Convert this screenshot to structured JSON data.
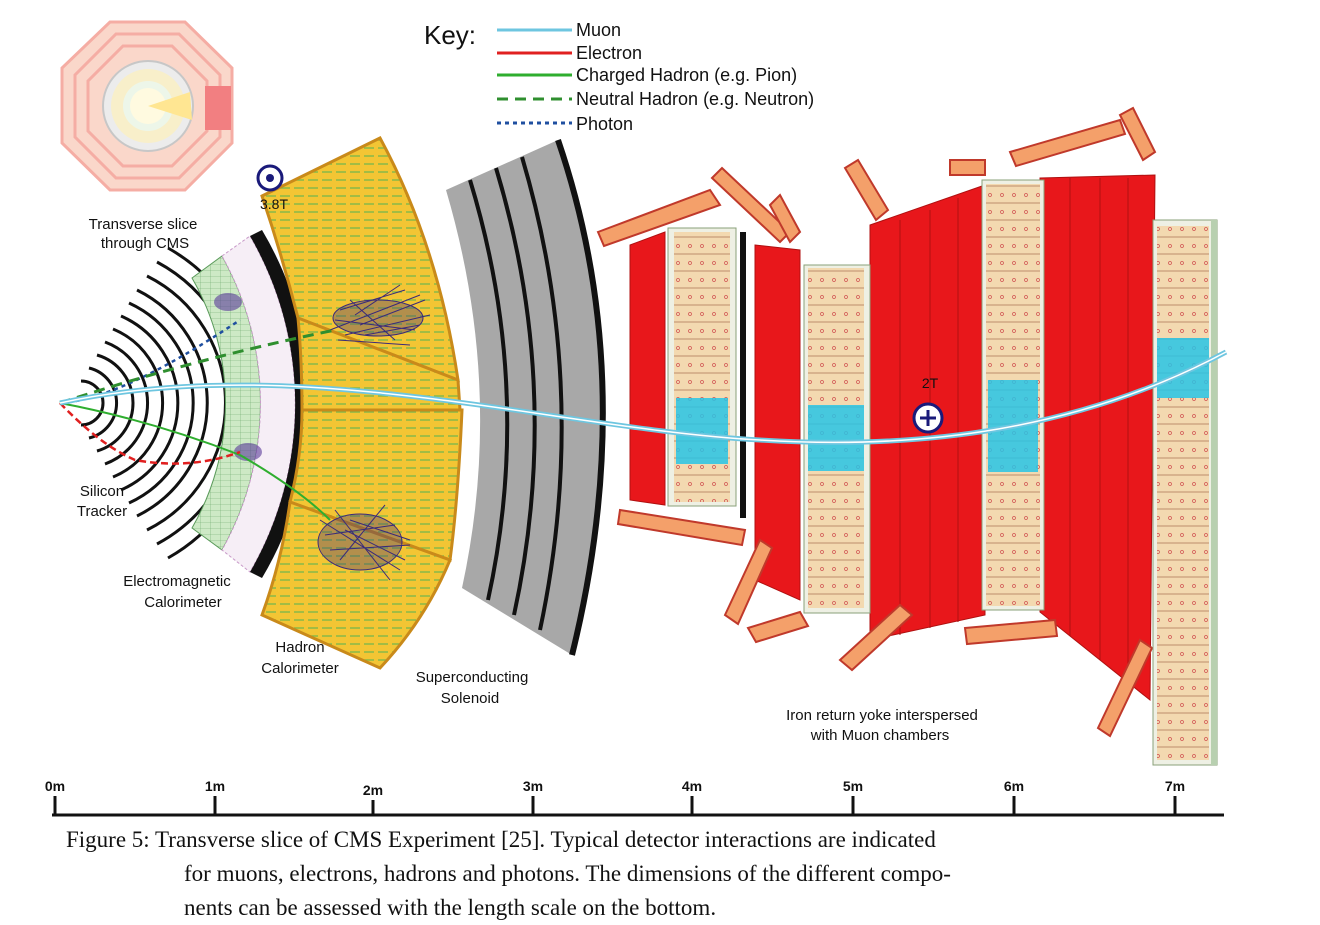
{
  "key": {
    "title": "Key:",
    "items": [
      {
        "label": "Muon",
        "color": "#6ec6e0",
        "style": "solid"
      },
      {
        "label": "Electron",
        "color": "#e02020",
        "style": "solid"
      },
      {
        "label": "Charged Hadron (e.g. Pion)",
        "color": "#2fae2f",
        "style": "solid"
      },
      {
        "label": "Neutral Hadron (e.g. Neutron)",
        "color": "#2f8f2f",
        "style": "dashed"
      },
      {
        "label": "Photon",
        "color": "#1f4fa0",
        "style": "dotted"
      }
    ]
  },
  "inset": {
    "label_line1": "Transverse slice",
    "label_line2": "through CMS"
  },
  "field_inner": {
    "value": "3.8T",
    "symbol": "dot-out-of-page"
  },
  "field_outer": {
    "value": "2T",
    "symbol": "cross-into-page"
  },
  "components": {
    "tracker": {
      "line1": "Silicon",
      "line2": "Tracker"
    },
    "ecal": {
      "line1": "Electromagnetic",
      "line2": "Calorimeter"
    },
    "hcal": {
      "line1": "Hadron",
      "line2": "Calorimeter"
    },
    "solenoid": {
      "line1": "Superconducting",
      "line2": "Solenoid"
    },
    "yoke": {
      "line1": "Iron return yoke interspersed",
      "line2": "with Muon chambers"
    }
  },
  "scale": {
    "ticks": [
      "0m",
      "1m",
      "2m",
      "3m",
      "4m",
      "5m",
      "6m",
      "7m"
    ]
  },
  "colors": {
    "yoke_red": "#e8171b",
    "yoke_edge": "#f4a06a",
    "hcal_yellow": "#f3c534",
    "hcal_edge": "#c98a1a",
    "ecal_green": "#bfe3b8",
    "solenoid_grey": "#a8a8a8",
    "chamber_beige": "#f3d9b0",
    "chamber_cyan": "#27c4e6"
  },
  "caption": {
    "label": "Figure 5:",
    "line1": "Transverse slice of CMS Experiment [25]. Typical detector interactions are indicated",
    "line2": "for muons, electrons, hadrons and photons. The dimensions of the different compo-",
    "line3": "nents can be assessed with the length scale on the bottom."
  }
}
